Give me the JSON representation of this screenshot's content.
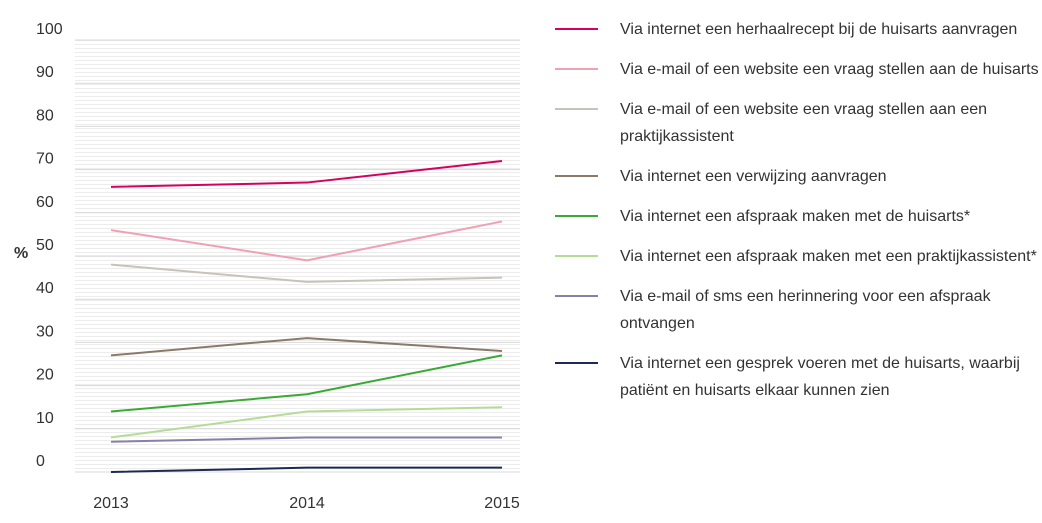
{
  "chart_data": {
    "type": "line",
    "ylabel": "%",
    "x": [
      "2013",
      "2014",
      "2015"
    ],
    "ylim": [
      0,
      100
    ],
    "yticks": [
      0,
      10,
      20,
      30,
      40,
      50,
      60,
      70,
      80,
      90,
      100
    ],
    "grid": true,
    "legend": "right",
    "series": [
      {
        "name": "Via internet een herhaalrecept bij de huisarts aanvragen",
        "color": "#d6005f",
        "values": [
          66,
          67,
          72
        ]
      },
      {
        "name": "Via e-mail of een website een vraag stellen aan de huisarts",
        "color": "#f0a0b4",
        "values": [
          56,
          49,
          58
        ]
      },
      {
        "name": "Via e-mail of een website een vraag stellen aan een praktijkassistent",
        "color": "#c8c3b9",
        "values": [
          48,
          44,
          45
        ]
      },
      {
        "name": "Via internet een verwijzing aanvragen",
        "color": "#8a7a6a",
        "values": [
          27,
          31,
          28
        ]
      },
      {
        "name": "Via internet een afspraak maken met de huisarts*",
        "color": "#3aaa35",
        "values": [
          14,
          18,
          27
        ]
      },
      {
        "name": "Via internet een afspraak maken met een praktijkassistent*",
        "color": "#b4dc96",
        "values": [
          8,
          14,
          15
        ]
      },
      {
        "name": "Via e-mail of sms een herinnering voor een afspraak ontvangen",
        "color": "#8880a8",
        "values": [
          7,
          8,
          8
        ]
      },
      {
        "name": "Via internet een gesprek voeren met de huisarts, waarbij patiënt en huisarts elkaar kunnen zien",
        "color": "#1e2a55",
        "values": [
          0,
          1,
          1
        ]
      }
    ]
  }
}
